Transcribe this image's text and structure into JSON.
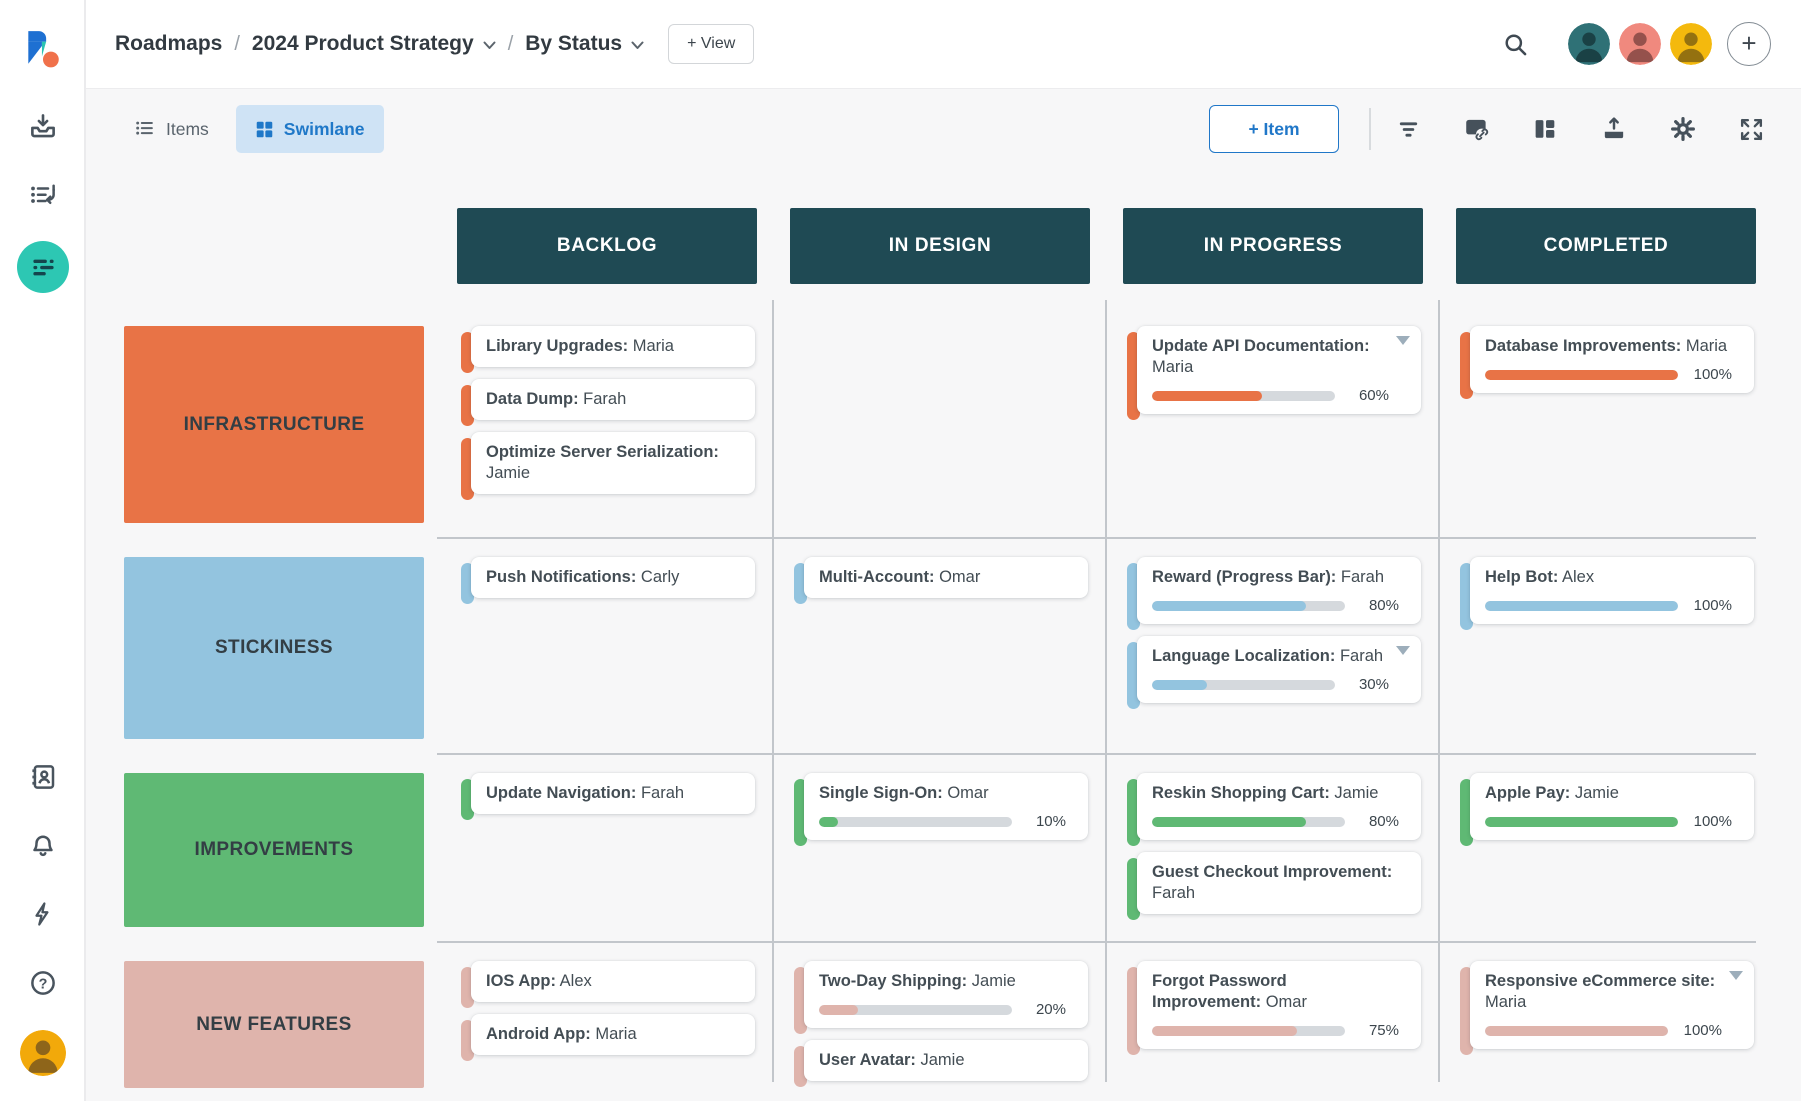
{
  "breadcrumb": {
    "root": "Roadmaps",
    "sep1": "/",
    "project": "2024 Product Strategy",
    "sep2": "/",
    "view": "By Status"
  },
  "header": {
    "view_button": "+ View",
    "icons": [
      "search-icon",
      "add-icon"
    ]
  },
  "toolbar": {
    "tabs": [
      {
        "label": "Items",
        "active": false
      },
      {
        "label": "Swimlane",
        "active": true
      }
    ],
    "item_button": "+ Item",
    "action_icons": [
      "filter-icon",
      "linked-items-icon",
      "swimlane-layout-icon",
      "export-icon",
      "settings-icon",
      "fullscreen-icon"
    ]
  },
  "sidebar": {
    "icons": [
      "app-logo",
      "import-icon",
      "reviews-icon",
      "roadmaps-icon",
      "accounts-icon",
      "notifications-icon",
      "activity-icon",
      "help-icon",
      "user-avatar"
    ]
  },
  "colors": {
    "column_header_bg": "#1F4A54",
    "page_bg": "#F7F7F8",
    "grid_line": "#C2C6CB",
    "accent_blue": "#1F78C8",
    "active_tab_bg": "#CFE3F5",
    "sidebar_active": "#2DC7B3",
    "progress_track": "#D5D9DD",
    "avatar_bg": [
      "#2F7176",
      "#F0897E",
      "#F4B90D"
    ],
    "sidebar_avatar_bg": "#F2A90A"
  },
  "board": {
    "columns": [
      "BACKLOG",
      "IN DESIGN",
      "IN PROGRESS",
      "COMPLETED"
    ],
    "rows": [
      {
        "label": "INFRASTRUCTURE",
        "color": "#E87346",
        "cells": [
          [
            {
              "title": "Library Upgrades:",
              "assignee": "Maria"
            },
            {
              "title": "Data Dump:",
              "assignee": "Farah"
            },
            {
              "title": "Optimize Server Serialization:",
              "assignee": "Jamie"
            }
          ],
          [],
          [
            {
              "title": "Update API Documentation:",
              "assignee": "Maria",
              "progress": 60,
              "dropdown": true
            }
          ],
          [
            {
              "title": "Database Improvements:",
              "assignee": "Maria",
              "progress": 100
            }
          ]
        ]
      },
      {
        "label": "STICKINESS",
        "color": "#93C4DF",
        "cells": [
          [
            {
              "title": "Push Notifications:",
              "assignee": "Carly"
            }
          ],
          [
            {
              "title": "Multi-Account:",
              "assignee": "Omar"
            }
          ],
          [
            {
              "title": "Reward (Progress Bar):",
              "assignee": "Farah",
              "progress": 80
            },
            {
              "title": "Language Localization:",
              "assignee": "Farah",
              "progress": 30,
              "dropdown": true
            }
          ],
          [
            {
              "title": "Help Bot:",
              "assignee": "Alex",
              "progress": 100
            }
          ]
        ]
      },
      {
        "label": "IMPROVEMENTS",
        "color": "#5FB974",
        "cells": [
          [
            {
              "title": "Update Navigation:",
              "assignee": "Farah"
            }
          ],
          [
            {
              "title": "Single Sign-On:",
              "assignee": "Omar",
              "progress": 10
            }
          ],
          [
            {
              "title": "Reskin Shopping Cart:",
              "assignee": "Jamie",
              "progress": 80
            },
            {
              "title": "Guest Checkout Improvement:",
              "assignee": "Farah"
            }
          ],
          [
            {
              "title": "Apple Pay:",
              "assignee": "Jamie",
              "progress": 100
            }
          ]
        ]
      },
      {
        "label": "NEW FEATURES",
        "color": "#DFB4AC",
        "cells": [
          [
            {
              "title": "IOS App:",
              "assignee": "Alex"
            },
            {
              "title": "Android App:",
              "assignee": "Maria"
            }
          ],
          [
            {
              "title": "Two-Day Shipping:",
              "assignee": "Jamie",
              "progress": 20
            },
            {
              "title": "User Avatar:",
              "assignee": "Jamie"
            }
          ],
          [
            {
              "title": "Forgot Password Improvement:",
              "assignee": "Omar",
              "progress": 75
            }
          ],
          [
            {
              "title": "Responsive eCommerce site:",
              "assignee": "Maria",
              "progress": 100,
              "dropdown": true
            }
          ]
        ]
      }
    ]
  }
}
